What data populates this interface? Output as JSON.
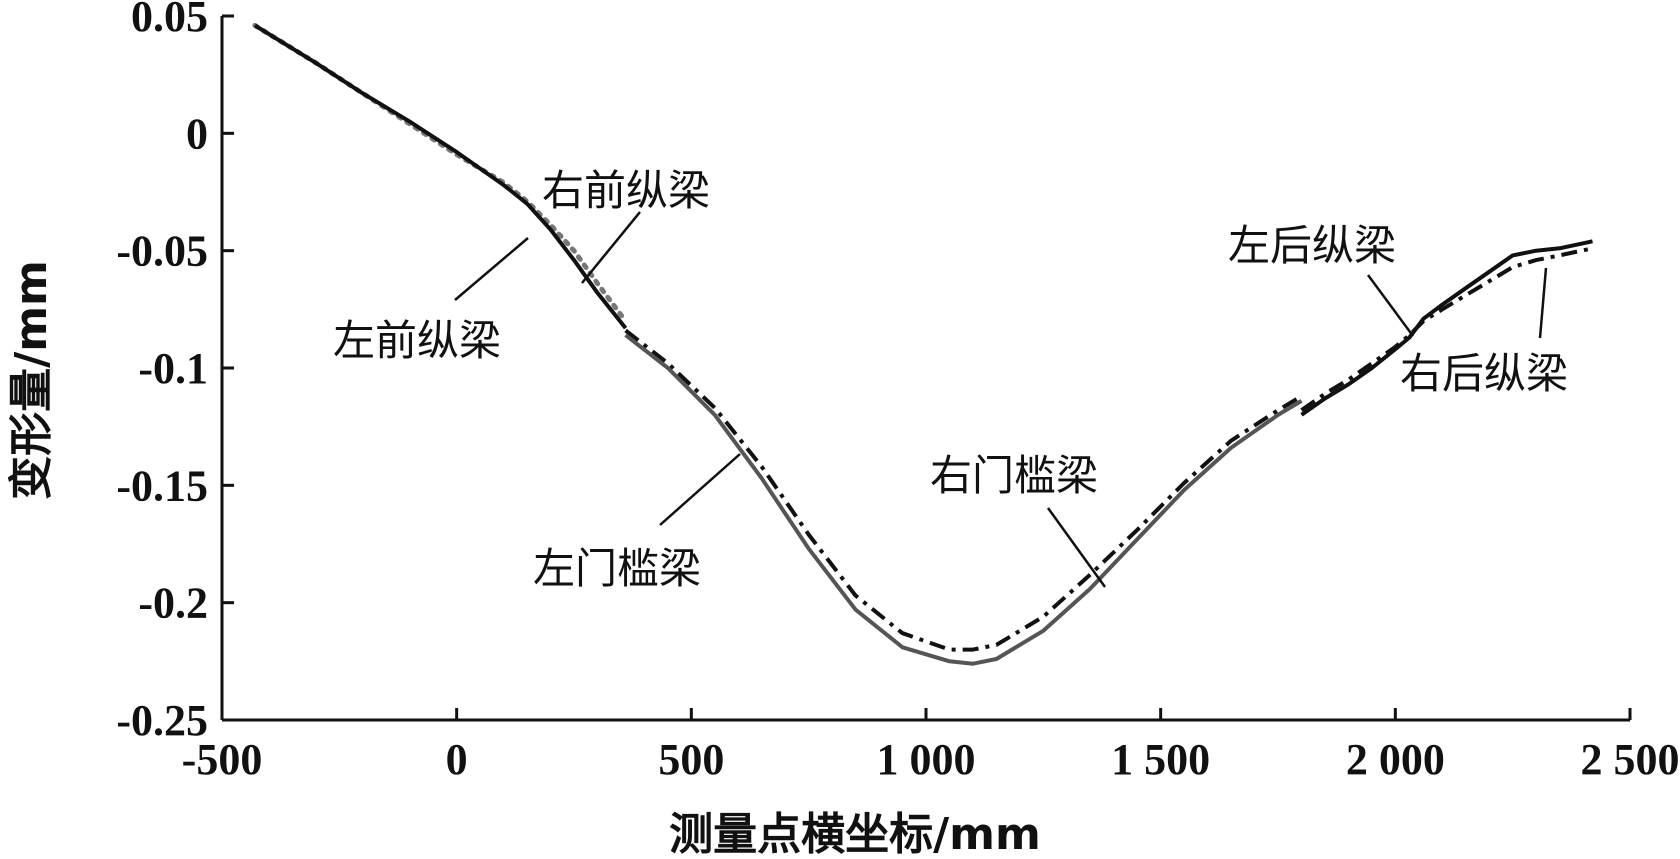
{
  "chart_data": {
    "type": "line",
    "xlabel": "测量点横坐标/mm",
    "ylabel": "变形量/mm",
    "xlim": [
      -500,
      2500
    ],
    "ylim": [
      -0.25,
      0.05
    ],
    "xticks": [
      {
        "value": -500,
        "label": "-500"
      },
      {
        "value": 0,
        "label": "0"
      },
      {
        "value": 500,
        "label": "500"
      },
      {
        "value": 1000,
        "label": "1 000"
      },
      {
        "value": 1500,
        "label": "1 500"
      },
      {
        "value": 2000,
        "label": "2 000"
      },
      {
        "value": 2500,
        "label": "2 500"
      }
    ],
    "yticks": [
      {
        "value": 0.05,
        "label": "0.05"
      },
      {
        "value": 0,
        "label": "0"
      },
      {
        "value": -0.05,
        "label": "-0.05"
      },
      {
        "value": -0.1,
        "label": "-0.1"
      },
      {
        "value": -0.15,
        "label": "-0.15"
      },
      {
        "value": -0.2,
        "label": "-0.2"
      },
      {
        "value": -0.25,
        "label": "-0.25"
      }
    ],
    "series": [
      {
        "name": "左前纵梁",
        "style": "solid",
        "color": "#111111",
        "x": [
          -430,
          -300,
          -200,
          -100,
          0,
          100,
          150,
          200,
          250,
          300,
          360
        ],
        "y": [
          0.046,
          0.03,
          0.017,
          0.005,
          -0.008,
          -0.022,
          -0.03,
          -0.041,
          -0.054,
          -0.068,
          -0.083
        ]
      },
      {
        "name": "右前纵梁",
        "style": "dotted",
        "color": "#777777",
        "x": [
          -430,
          -300,
          -200,
          -100,
          0,
          100,
          150,
          200,
          250,
          300,
          360
        ],
        "y": [
          0.046,
          0.03,
          0.017,
          0.004,
          -0.009,
          -0.021,
          -0.029,
          -0.039,
          -0.05,
          -0.064,
          -0.08
        ]
      },
      {
        "name": "左门槛梁",
        "style": "solid",
        "color": "#555555",
        "x": [
          360,
          450,
          550,
          650,
          750,
          850,
          950,
          1050,
          1100,
          1150,
          1250,
          1350,
          1450,
          1550,
          1650,
          1750,
          1800
        ],
        "y": [
          -0.086,
          -0.1,
          -0.12,
          -0.147,
          -0.177,
          -0.203,
          -0.219,
          -0.225,
          -0.226,
          -0.224,
          -0.212,
          -0.194,
          -0.173,
          -0.152,
          -0.134,
          -0.12,
          -0.114
        ]
      },
      {
        "name": "右门槛梁",
        "style": "dashdot",
        "color": "#111111",
        "x": [
          360,
          450,
          550,
          650,
          750,
          850,
          950,
          1050,
          1100,
          1150,
          1250,
          1350,
          1450,
          1550,
          1650,
          1750,
          1800
        ],
        "y": [
          -0.084,
          -0.098,
          -0.117,
          -0.142,
          -0.171,
          -0.197,
          -0.213,
          -0.22,
          -0.22,
          -0.218,
          -0.206,
          -0.188,
          -0.169,
          -0.149,
          -0.131,
          -0.118,
          -0.112
        ]
      },
      {
        "name": "左后纵梁",
        "style": "solid",
        "color": "#111111",
        "x": [
          1800,
          1850,
          1900,
          1950,
          2000,
          2030,
          2060,
          2100,
          2150,
          2200,
          2250,
          2300,
          2350,
          2420
        ],
        "y": [
          -0.12,
          -0.113,
          -0.107,
          -0.1,
          -0.092,
          -0.087,
          -0.079,
          -0.073,
          -0.066,
          -0.059,
          -0.052,
          -0.05,
          -0.049,
          -0.046
        ]
      },
      {
        "name": "右后纵梁",
        "style": "dashdot",
        "color": "#111111",
        "x": [
          1800,
          1850,
          1900,
          1950,
          2000,
          2030,
          2060,
          2100,
          2150,
          2200,
          2250,
          2300,
          2350,
          2420
        ],
        "y": [
          -0.118,
          -0.111,
          -0.105,
          -0.098,
          -0.091,
          -0.086,
          -0.08,
          -0.075,
          -0.069,
          -0.063,
          -0.057,
          -0.054,
          -0.052,
          -0.049
        ]
      }
    ],
    "annotations": [
      {
        "text": "右前纵梁",
        "series": 1
      },
      {
        "text": "左前纵梁",
        "series": 0
      },
      {
        "text": "左门槛梁",
        "series": 2
      },
      {
        "text": "右门槛梁",
        "series": 3
      },
      {
        "text": "左后纵梁",
        "series": 4
      },
      {
        "text": "右后纵梁",
        "series": 5
      }
    ],
    "grid": false,
    "legend": "none"
  }
}
